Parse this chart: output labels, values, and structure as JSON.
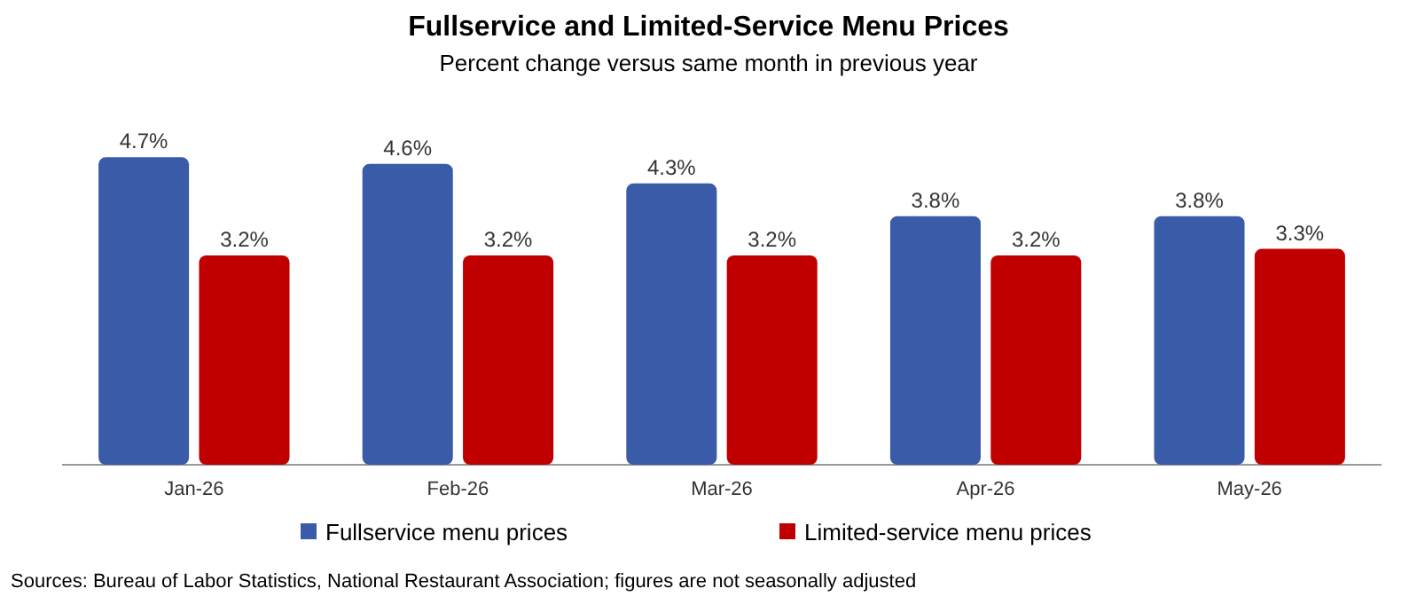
{
  "chart_data": {
    "type": "bar",
    "title": "Fullservice and Limited-Service Menu Prices",
    "subtitle": "Percent change versus same month in previous year",
    "categories": [
      "Jan-26",
      "Feb-26",
      "Mar-26",
      "Apr-26",
      "May-26"
    ],
    "series": [
      {
        "name": "Fullservice menu prices",
        "color": "#3a5ba8",
        "values": [
          4.7,
          4.6,
          4.3,
          3.8,
          3.8
        ],
        "value_labels": [
          "4.7%",
          "4.6%",
          "4.3%",
          "3.8%",
          "3.8%"
        ]
      },
      {
        "name": "Limited-service menu prices",
        "color": "#c00000",
        "values": [
          3.2,
          3.2,
          3.2,
          3.2,
          3.3
        ],
        "value_labels": [
          "3.2%",
          "3.2%",
          "3.2%",
          "3.2%",
          "3.3%"
        ]
      }
    ],
    "tick_labels": "x",
    "legend": "bottom",
    "annotations": [
      "Sources: Bureau of Labor Statistics, National Restaurant Association; figures are not seasonally adjusted"
    ]
  }
}
